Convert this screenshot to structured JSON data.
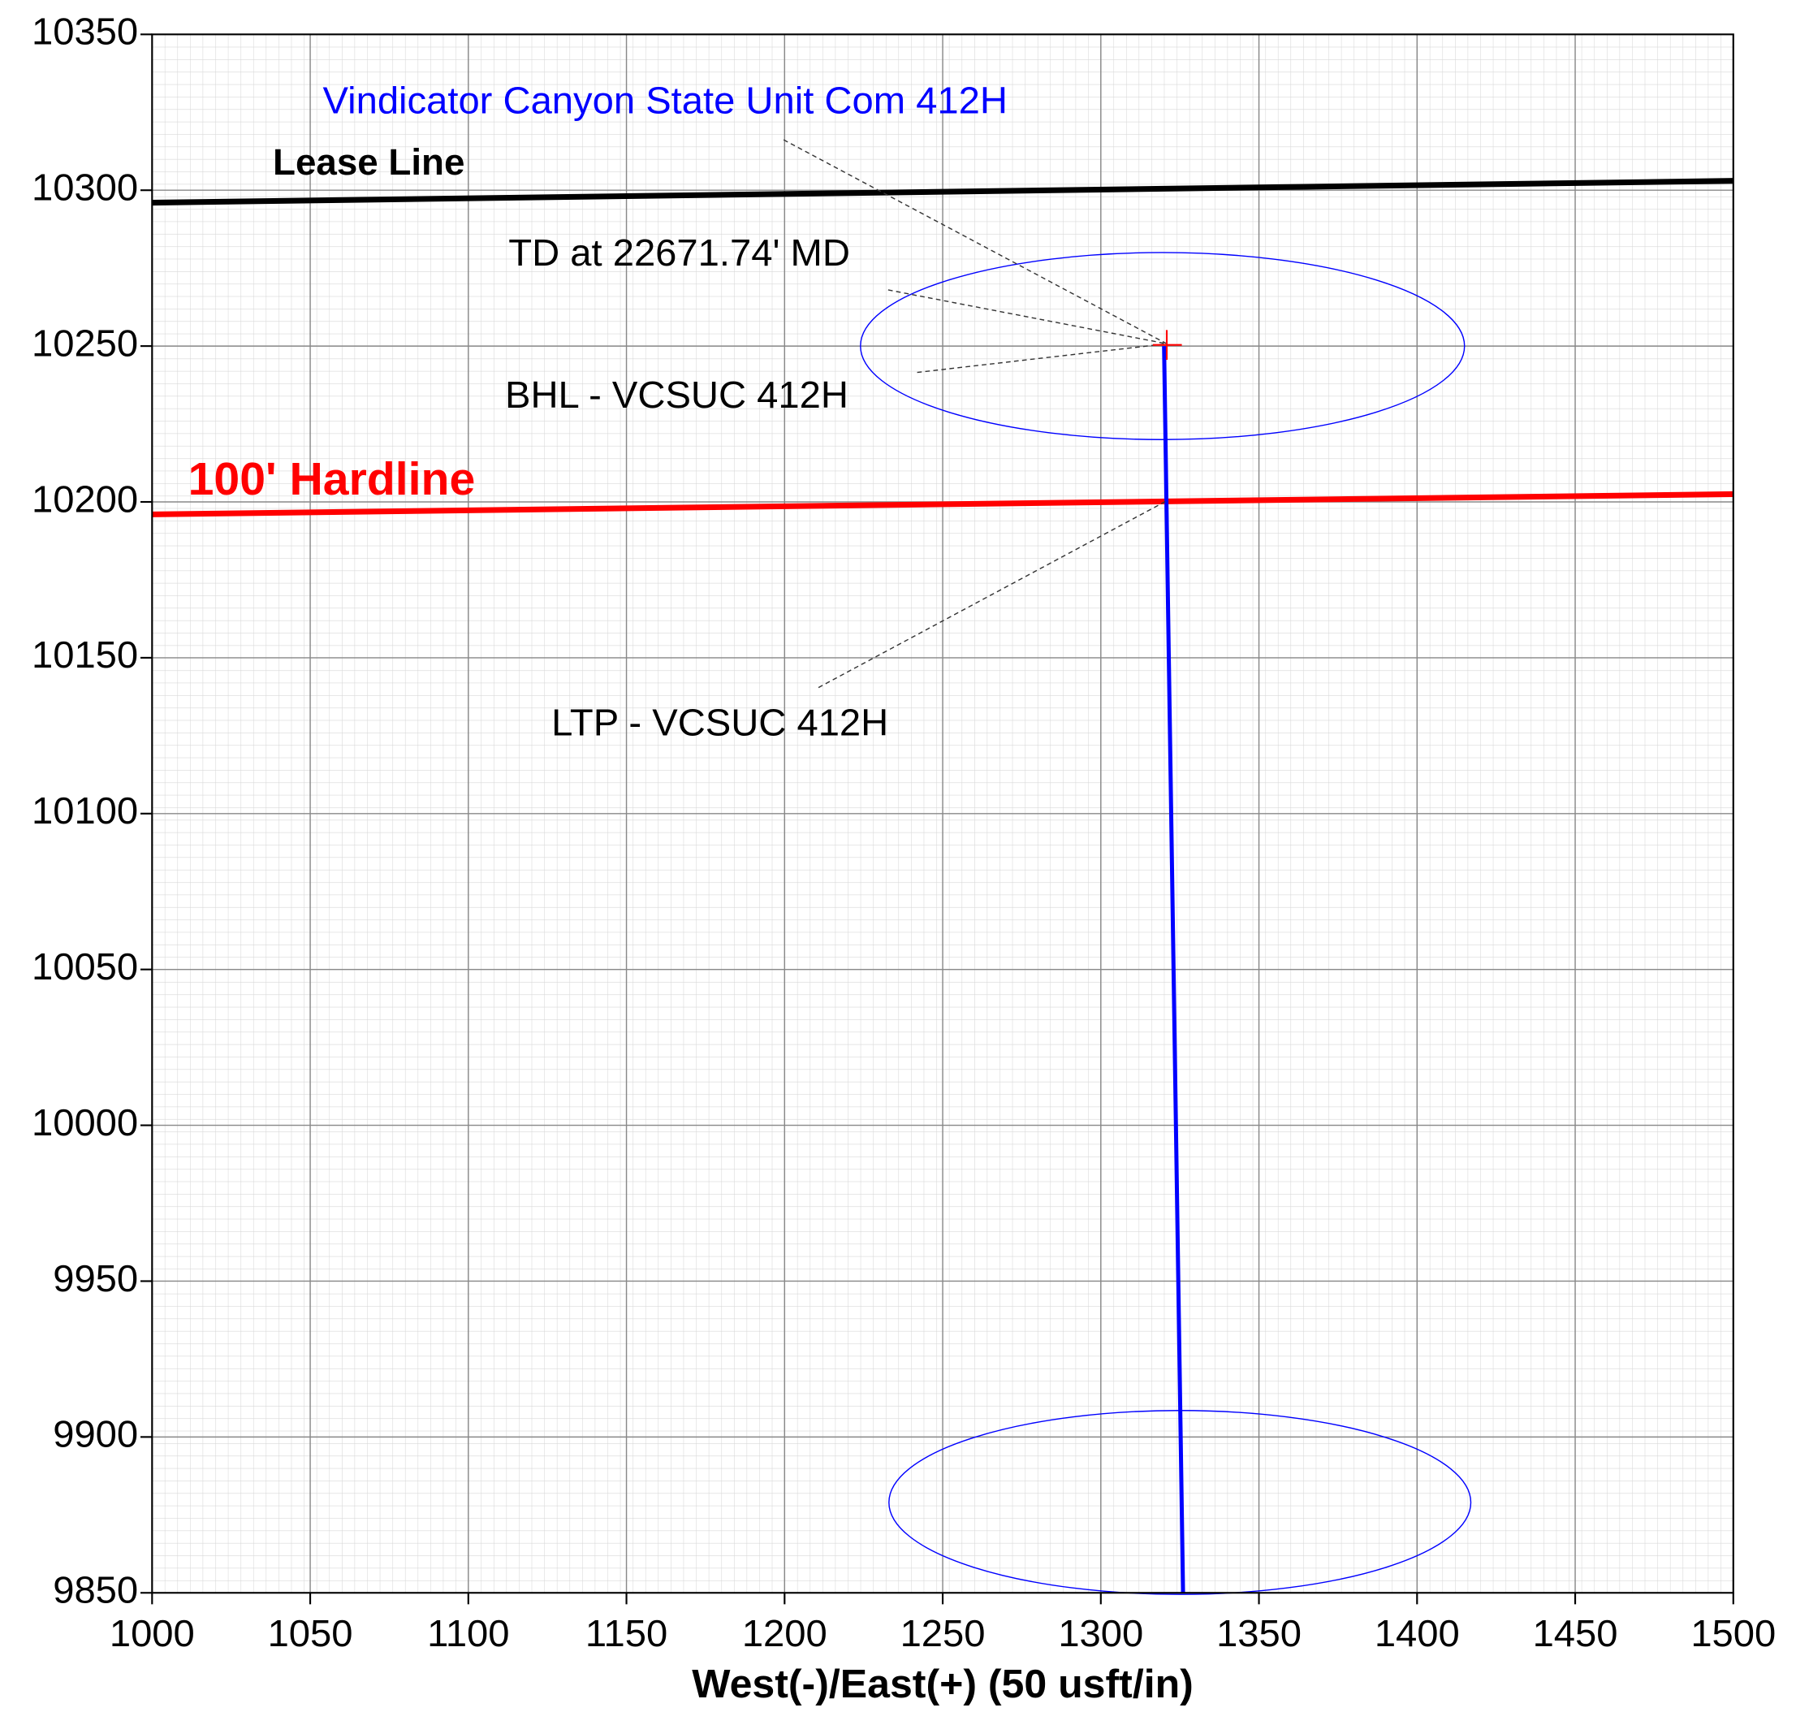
{
  "chart_data": {
    "type": "line",
    "xlabel": "West(-)/East(+) (50 usft/in)",
    "xlim": [
      1000,
      1500
    ],
    "ylim": [
      9850,
      10350
    ],
    "xticks": [
      1000,
      1050,
      1100,
      1150,
      1200,
      1250,
      1300,
      1350,
      1400,
      1450,
      1500
    ],
    "yticks": [
      9850,
      9900,
      9950,
      10000,
      10050,
      10100,
      10150,
      10200,
      10250,
      10300,
      10350
    ],
    "grid": true,
    "series": [
      {
        "name": "Lease Line",
        "color": "#000000",
        "x": [
          1000,
          1500
        ],
        "values": [
          10296,
          10303
        ]
      },
      {
        "name": "100' Hardline",
        "color": "#ff0000",
        "x": [
          1000,
          1500
        ],
        "values": [
          10196,
          10202.5
        ]
      },
      {
        "color": "#0000ff",
        "x": [
          1326,
          1320
        ],
        "values": [
          9850,
          10250
        ]
      }
    ],
    "ellipses": [
      {
        "cx": 1319.5,
        "cy": 10250,
        "rx": 95.5,
        "ry": 30,
        "color": "#0000ff"
      },
      {
        "cx": 1325,
        "cy": 9879,
        "rx": 92,
        "ry": 29.5,
        "color": "#0000ff"
      }
    ],
    "annotations": [
      "Vindicator Canyon State Unit Com 412H",
      "TD at 22671.74' MD",
      "BHL - VCSUC 412H",
      "LTP - VCSUC 412H"
    ]
  }
}
